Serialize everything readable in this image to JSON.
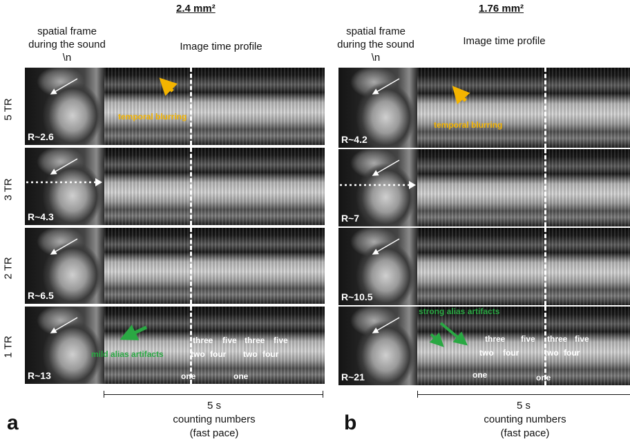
{
  "panels": [
    {
      "letter": "a",
      "title": "2.4 mm²",
      "header_left": "spatial frame during the sound \\n",
      "header_right": "Image time profile",
      "rows": [
        {
          "tr_label": "5 TR",
          "r_label": "R~2.6"
        },
        {
          "tr_label": "3 TR",
          "r_label": "R~4.3"
        },
        {
          "tr_label": "2 TR",
          "r_label": "R~6.5"
        },
        {
          "tr_label": "1 TR",
          "r_label": "R~13"
        }
      ],
      "annotations": {
        "blurring": "temporal blurring",
        "alias": "mild alias artifacts"
      },
      "words": [
        "three",
        "five",
        "three",
        "five",
        "two",
        "four",
        "two",
        "four",
        "one",
        "one"
      ],
      "scale": "5 s",
      "footer_line1": "counting numbers",
      "footer_line2": "(fast pace)"
    },
    {
      "letter": "b",
      "title": "1.76 mm²",
      "header_left": "spatial frame during the sound \\n",
      "header_right": "Image time profile",
      "rows": [
        {
          "r_label": "R~4.2"
        },
        {
          "r_label": "R~7"
        },
        {
          "r_label": "R~10.5"
        },
        {
          "r_label": "R~21"
        }
      ],
      "annotations": {
        "blurring": "temporal blurring",
        "alias": "strong alias artifacts"
      },
      "words": [
        "three",
        "five",
        "three",
        "five",
        "two",
        "four",
        "two",
        "four",
        "one",
        "one"
      ],
      "scale": "5 s",
      "footer_line1": "counting numbers",
      "footer_line2": "(fast pace)"
    }
  ],
  "colors": {
    "annotation_yellow": "#f4b400",
    "annotation_green": "#2aa843",
    "image_label": "#ffffff"
  }
}
